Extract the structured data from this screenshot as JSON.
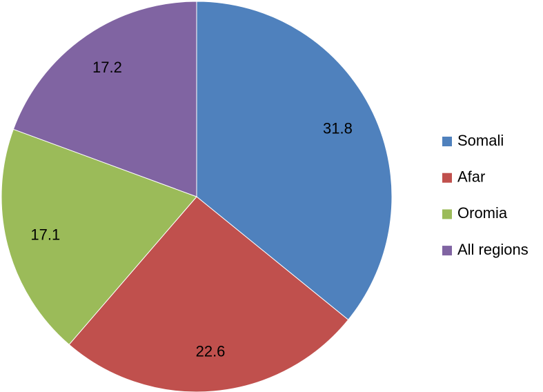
{
  "chart_data": {
    "type": "pie",
    "categories": [
      "Somali",
      "Afar",
      "Oromia",
      "All regions"
    ],
    "values": [
      31.8,
      22.6,
      17.1,
      17.2
    ],
    "colors": [
      "#4f81bd",
      "#c0504d",
      "#9bbb59",
      "#8064a2"
    ],
    "legend": "right"
  }
}
